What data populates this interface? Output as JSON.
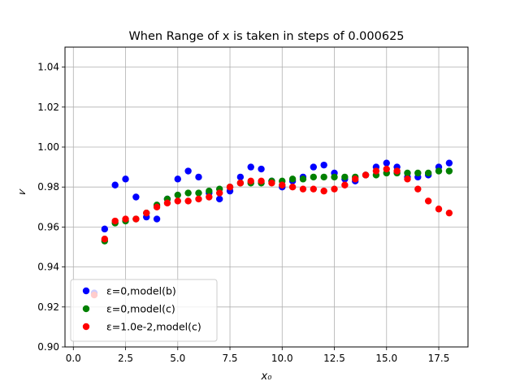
{
  "chart_data": {
    "type": "scatter",
    "title": "When Range of x is taken in steps of 0.000625",
    "xlabel": "x₀",
    "ylabel": "𝜈",
    "xlim": [
      -0.4,
      18.9
    ],
    "ylim": [
      0.9,
      1.05
    ],
    "xticks": [
      0.0,
      2.5,
      5.0,
      7.5,
      10.0,
      12.5,
      15.0,
      17.5
    ],
    "xtick_labels": [
      "0.0",
      "2.5",
      "5.0",
      "7.5",
      "10.0",
      "12.5",
      "15.0",
      "17.5"
    ],
    "yticks": [
      0.9,
      0.92,
      0.94,
      0.96,
      0.98,
      1.0,
      1.02,
      1.04
    ],
    "ytick_labels": [
      "0.90",
      "0.92",
      "0.94",
      "0.96",
      "0.98",
      "1.00",
      "1.02",
      "1.04"
    ],
    "grid": true,
    "legend_position": "lower-left",
    "series": [
      {
        "name": "ε=0,model(b)",
        "color": "#0000ff",
        "points": [
          [
            1.0,
            0.927
          ],
          [
            1.5,
            0.959
          ],
          [
            2.0,
            0.981
          ],
          [
            2.5,
            0.984
          ],
          [
            3.0,
            0.975
          ],
          [
            3.5,
            0.965
          ],
          [
            4.0,
            0.964
          ],
          [
            4.5,
            0.974
          ],
          [
            5.0,
            0.984
          ],
          [
            5.5,
            0.988
          ],
          [
            6.0,
            0.985
          ],
          [
            6.5,
            0.977
          ],
          [
            7.0,
            0.974
          ],
          [
            7.5,
            0.978
          ],
          [
            8.0,
            0.985
          ],
          [
            8.5,
            0.99
          ],
          [
            9.0,
            0.989
          ],
          [
            9.5,
            0.983
          ],
          [
            10.0,
            0.98
          ],
          [
            10.5,
            0.983
          ],
          [
            11.0,
            0.985
          ],
          [
            11.5,
            0.99
          ],
          [
            12.0,
            0.991
          ],
          [
            12.5,
            0.987
          ],
          [
            13.0,
            0.984
          ],
          [
            13.5,
            0.983
          ],
          [
            14.0,
            0.986
          ],
          [
            14.5,
            0.99
          ],
          [
            15.0,
            0.992
          ],
          [
            15.5,
            0.99
          ],
          [
            16.0,
            0.985
          ],
          [
            16.5,
            0.985
          ],
          [
            17.0,
            0.986
          ],
          [
            17.5,
            0.99
          ],
          [
            18.0,
            0.992
          ]
        ]
      },
      {
        "name": "ε=0,model(c)",
        "color": "#008000",
        "points": [
          [
            1.5,
            0.953
          ],
          [
            2.0,
            0.962
          ],
          [
            2.5,
            0.963
          ],
          [
            3.0,
            0.964
          ],
          [
            3.5,
            0.967
          ],
          [
            4.0,
            0.971
          ],
          [
            4.5,
            0.974
          ],
          [
            5.0,
            0.976
          ],
          [
            5.5,
            0.977
          ],
          [
            6.0,
            0.977
          ],
          [
            6.5,
            0.978
          ],
          [
            7.0,
            0.979
          ],
          [
            7.5,
            0.98
          ],
          [
            8.0,
            0.982
          ],
          [
            8.5,
            0.982
          ],
          [
            9.0,
            0.982
          ],
          [
            9.5,
            0.983
          ],
          [
            10.0,
            0.983
          ],
          [
            10.5,
            0.984
          ],
          [
            11.0,
            0.984
          ],
          [
            11.5,
            0.985
          ],
          [
            12.0,
            0.985
          ],
          [
            12.5,
            0.985
          ],
          [
            13.0,
            0.985
          ],
          [
            13.5,
            0.985
          ],
          [
            14.0,
            0.986
          ],
          [
            14.5,
            0.986
          ],
          [
            15.0,
            0.987
          ],
          [
            15.5,
            0.987
          ],
          [
            16.0,
            0.987
          ],
          [
            16.5,
            0.987
          ],
          [
            17.0,
            0.987
          ],
          [
            17.5,
            0.988
          ],
          [
            18.0,
            0.988
          ]
        ]
      },
      {
        "name": "ε=1.0e-2,model(c)",
        "color": "#ff0000",
        "points": [
          [
            1.0,
            0.926
          ],
          [
            1.5,
            0.954
          ],
          [
            2.0,
            0.963
          ],
          [
            2.5,
            0.964
          ],
          [
            3.0,
            0.964
          ],
          [
            3.5,
            0.967
          ],
          [
            4.0,
            0.97
          ],
          [
            4.5,
            0.972
          ],
          [
            5.0,
            0.973
          ],
          [
            5.5,
            0.973
          ],
          [
            6.0,
            0.974
          ],
          [
            6.5,
            0.975
          ],
          [
            7.0,
            0.977
          ],
          [
            7.5,
            0.98
          ],
          [
            8.0,
            0.982
          ],
          [
            8.5,
            0.983
          ],
          [
            9.0,
            0.983
          ],
          [
            9.5,
            0.982
          ],
          [
            10.0,
            0.981
          ],
          [
            10.5,
            0.98
          ],
          [
            11.0,
            0.979
          ],
          [
            11.5,
            0.979
          ],
          [
            12.0,
            0.978
          ],
          [
            12.5,
            0.979
          ],
          [
            13.0,
            0.981
          ],
          [
            13.5,
            0.984
          ],
          [
            14.0,
            0.986
          ],
          [
            14.5,
            0.988
          ],
          [
            15.0,
            0.989
          ],
          [
            15.5,
            0.988
          ],
          [
            16.0,
            0.984
          ],
          [
            16.5,
            0.979
          ],
          [
            17.0,
            0.973
          ],
          [
            17.5,
            0.969
          ],
          [
            18.0,
            0.967
          ]
        ]
      }
    ]
  }
}
